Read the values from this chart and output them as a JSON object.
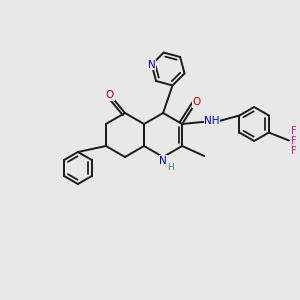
{
  "background_color": "#e8e8e8",
  "bond_color": "#1a1a1a",
  "bond_width": 1.4,
  "atom_colors": {
    "N": "#0000cc",
    "O": "#cc0000",
    "F": "#ee00aa",
    "NH_color": "#2d8080"
  },
  "font_size_atom": 7.5,
  "figsize": [
    3.0,
    3.0
  ],
  "dpi": 100
}
